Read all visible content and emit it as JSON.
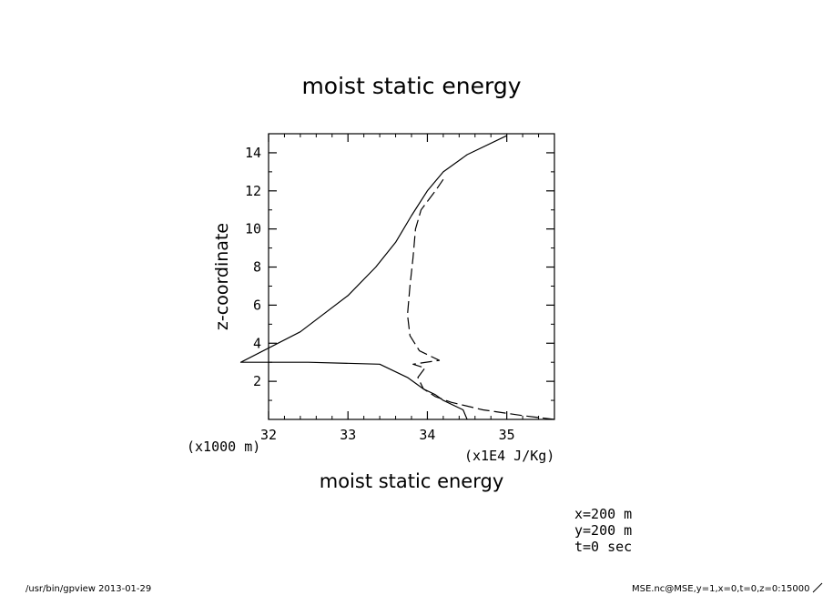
{
  "chart_data": {
    "type": "line",
    "title": "moist static energy",
    "xlabel": "moist static energy",
    "ylabel": "z-coordinate",
    "x_unit": "(x1E4 J/Kg)",
    "y_unit": "(x1000 m)",
    "xlim": [
      32,
      35.6
    ],
    "ylim": [
      0,
      15
    ],
    "x_ticks": [
      "32",
      "33",
      "34",
      "35"
    ],
    "y_ticks": [
      "2",
      "4",
      "6",
      "8",
      "10",
      "12",
      "14"
    ],
    "grid": false,
    "series": [
      {
        "style": "solid",
        "x": [
          34.5,
          34.45,
          34.2,
          34.1,
          33.95,
          33.75,
          33.4,
          32.5,
          31.65,
          32.4,
          33.0,
          33.35,
          33.6,
          33.8,
          34.0,
          34.2,
          34.5,
          35.0
        ],
        "y": [
          0.0,
          0.5,
          1.0,
          1.3,
          1.6,
          2.2,
          2.9,
          3.0,
          3.0,
          4.6,
          6.5,
          8.0,
          9.3,
          10.7,
          12.0,
          13.0,
          13.9,
          14.9
        ]
      },
      {
        "style": "dashed",
        "x": [
          35.6,
          35.2,
          34.7,
          34.3,
          34.1,
          33.95,
          33.88,
          33.97,
          33.82,
          34.15,
          33.9,
          33.78,
          33.75,
          33.78,
          33.82,
          33.85,
          33.92,
          34.1,
          34.2
        ],
        "y": [
          0.0,
          0.2,
          0.5,
          0.9,
          1.2,
          1.6,
          2.2,
          2.7,
          2.9,
          3.1,
          3.6,
          4.4,
          5.5,
          7.0,
          8.5,
          10.0,
          11.0,
          12.0,
          12.6
        ]
      }
    ]
  },
  "meta": {
    "x_coord": "x=200 m",
    "y_coord": "y=200 m",
    "time": "t=0 sec"
  },
  "footer": {
    "left": "/usr/bin/gpview  2013-01-29",
    "right": "MSE.nc@MSE,y=1,x=0,t=0,z=0:15000"
  }
}
